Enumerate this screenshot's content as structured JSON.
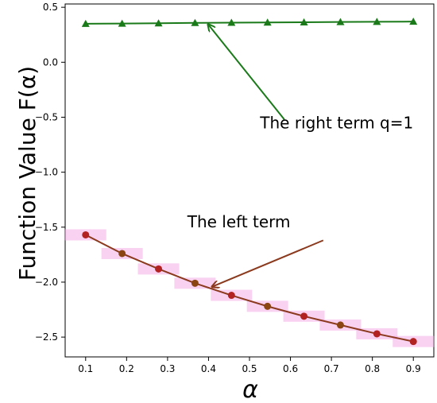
{
  "chart_data": {
    "type": "line",
    "title": "",
    "xlabel": "α",
    "ylabel": "Function Value F(α)",
    "xlim": [
      0.05,
      0.95
    ],
    "ylim": [
      -2.68,
      0.53
    ],
    "grid": false,
    "x_ticks": [
      0.1,
      0.2,
      0.3,
      0.4,
      0.5,
      0.6,
      0.7,
      0.8,
      0.9
    ],
    "x_tick_labels": [
      "0.1",
      "0.2",
      "0.3",
      "0.4",
      "0.5",
      "0.6",
      "0.7",
      "0.8",
      "0.9"
    ],
    "y_ticks": [
      0.5,
      0.0,
      -0.5,
      -1.0,
      -1.5,
      -2.0,
      -2.5
    ],
    "y_tick_labels": [
      "0.5",
      "0.0",
      "−0.5",
      "−1.0",
      "−1.5",
      "−2.0",
      "−2.5"
    ],
    "x": [
      0.1,
      0.189,
      0.278,
      0.367,
      0.456,
      0.544,
      0.633,
      0.722,
      0.811,
      0.9
    ],
    "series": [
      {
        "marker": "triangle",
        "color": "#1a7a1a",
        "values": [
          0.35,
          0.352,
          0.355,
          0.358,
          0.36,
          0.362,
          0.364,
          0.366,
          0.368,
          0.37
        ]
      },
      {
        "marker": "circle",
        "color": "#8b3a1e",
        "marker_colors": [
          "#b22222",
          "#8b4513",
          "#b22222",
          "#8b4513",
          "#b22222",
          "#8b4513",
          "#b22222",
          "#8b4513",
          "#b22222",
          "#b22222"
        ],
        "band_color": "#f4a6e6",
        "values": [
          -1.57,
          -1.74,
          -1.88,
          -2.01,
          -2.12,
          -2.22,
          -2.31,
          -2.39,
          -2.47,
          -2.54
        ]
      }
    ],
    "annotations": [
      {
        "text": "The right term q=1",
        "color": "#1a7a1a",
        "text_at": [
          0.9,
          -0.6
        ],
        "arrow_from": [
          0.585,
          -0.52
        ],
        "arrow_to": [
          0.4,
          0.34
        ]
      },
      {
        "text": "The left term",
        "color": "#8b3a1e",
        "text_at": [
          0.6,
          -1.5
        ],
        "arrow_from": [
          0.68,
          -1.62
        ],
        "arrow_to": [
          0.41,
          -2.04
        ]
      }
    ]
  }
}
